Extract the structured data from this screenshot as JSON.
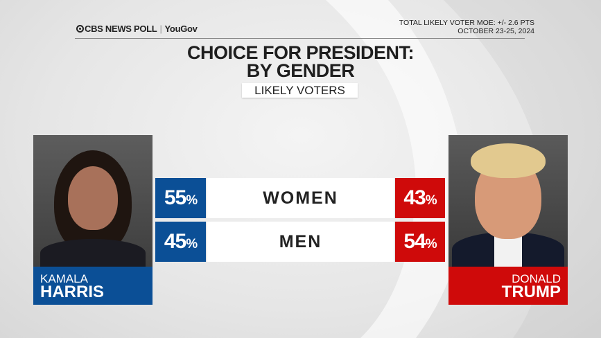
{
  "header": {
    "logo_text": "CBS NEWS POLL",
    "logo_partner": "YouGov",
    "moe": "TOTAL LIKELY VOTER MOE: +/- 2.6 PTS",
    "dates": "OCTOBER 23-25, 2024"
  },
  "colors": {
    "harris": "#0b4f96",
    "trump": "#cf0a0a"
  },
  "chart_data": {
    "type": "table",
    "title": "CHOICE FOR PRESIDENT:",
    "title2": "BY GENDER",
    "subtitle": "LIKELY VOTERS",
    "categories": [
      "WOMEN",
      "MEN"
    ],
    "series": [
      {
        "name": "KAMALA HARRIS",
        "first": "KAMALA",
        "last": "HARRIS",
        "values": [
          55,
          45
        ]
      },
      {
        "name": "DONALD TRUMP",
        "first": "DONALD",
        "last": "TRUMP",
        "values": [
          43,
          54
        ]
      }
    ],
    "unit": "%"
  }
}
